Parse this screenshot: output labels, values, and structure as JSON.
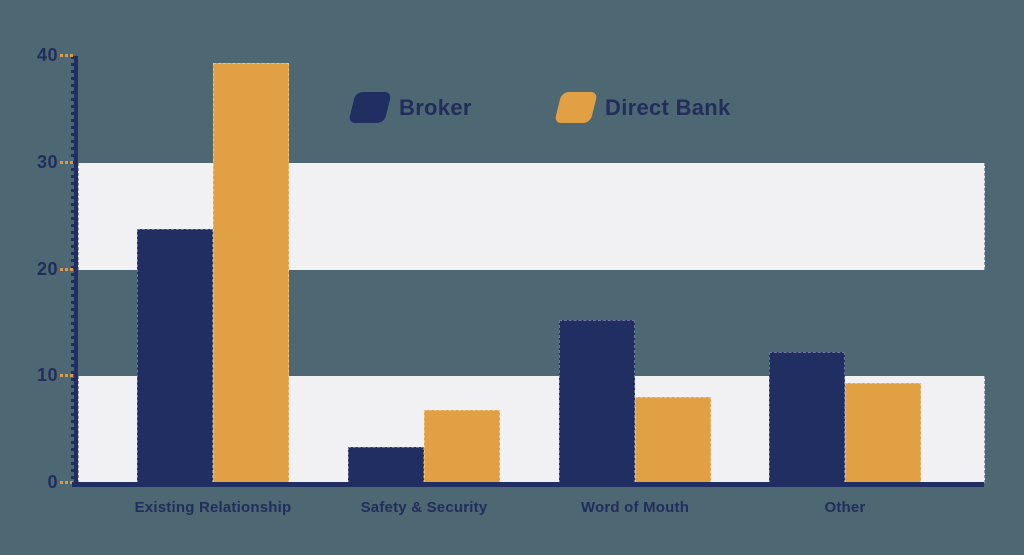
{
  "colors": {
    "background": "#4D6872",
    "navy": "#212E62",
    "orange": "#E2A044",
    "band": "#F1F0F2",
    "axis": "#212E62",
    "tick_dash": "#D8994C",
    "text": "#222D5C"
  },
  "legend": [
    {
      "label": "Broker",
      "color_key": "navy"
    },
    {
      "label": "Direct Bank",
      "color_key": "orange"
    }
  ],
  "chart_data": {
    "type": "bar",
    "title": "",
    "xlabel": "",
    "ylabel": "",
    "categories": [
      "Existing Relationship",
      "Safety & Security",
      "Word of Mouth",
      "Other"
    ],
    "series": [
      {
        "name": "Broker",
        "color_key": "navy",
        "values": [
          23.8,
          3.4,
          15.3,
          12.3
        ]
      },
      {
        "name": "Direct Bank",
        "color_key": "orange",
        "values": [
          39.3,
          6.8,
          8.1,
          9.4
        ]
      }
    ],
    "ylim": [
      0,
      40
    ],
    "yticks": [
      0,
      10,
      20,
      30,
      40
    ],
    "highlight_bands": [
      [
        0,
        10
      ],
      [
        20,
        30
      ]
    ],
    "grid": "alternating horizontal highlight bands",
    "legend_position": "top-center"
  }
}
